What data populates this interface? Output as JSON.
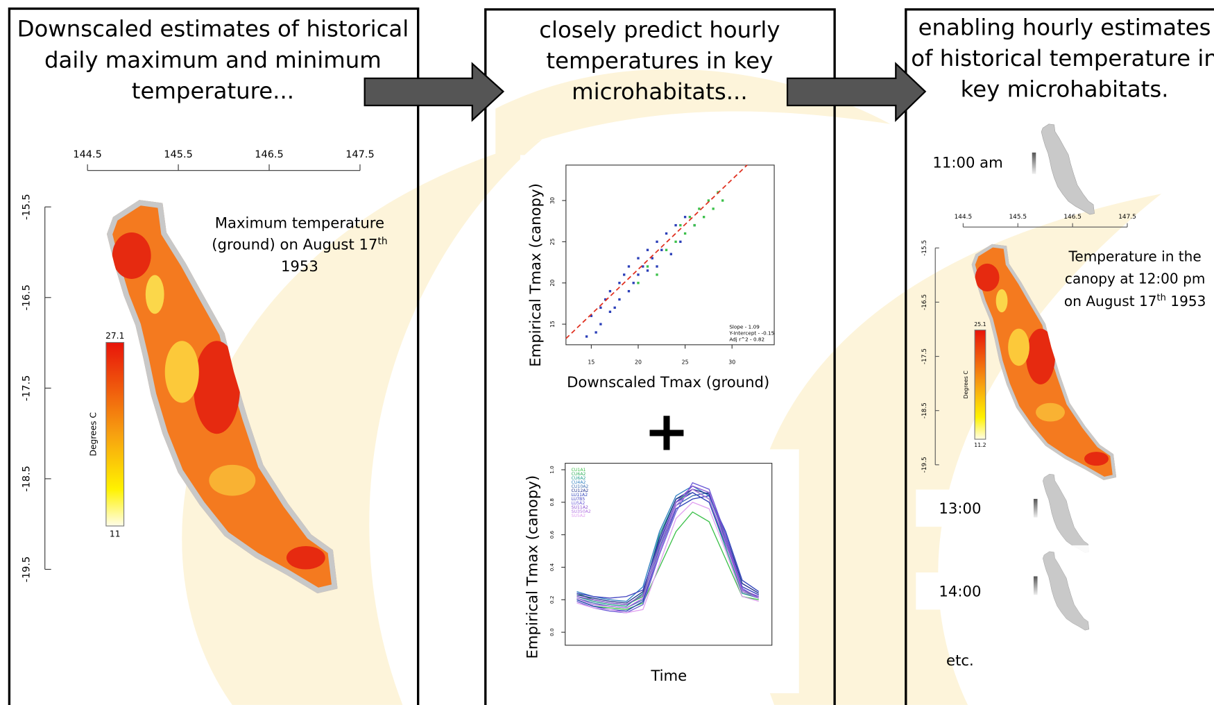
{
  "panels": [
    {
      "title_lines": [
        "Downscaled estimates of historical",
        "daily maximum and minimum",
        "temperature..."
      ],
      "xticks": [
        144.5,
        145.5,
        146.5,
        147.5
      ],
      "yticks": [
        -15.5,
        -16.5,
        -17.5,
        -18.5,
        -19.5
      ],
      "annotation": {
        "lines": [
          "Maximum temperature",
          "(ground) on August 17"
        ],
        "sup": "th",
        "last": "1953"
      },
      "colorbar": {
        "max": "27.1",
        "min": "11",
        "label": "Degrees C"
      }
    },
    {
      "title_lines": [
        "closely predict hourly",
        "temperatures in key",
        "microhabitats..."
      ],
      "plus": "+",
      "scatter": {
        "xlabel": "Downscaled Tmax (ground)",
        "ylabel": "Empirical Tmax (canopy)",
        "xlim": [
          12.3,
          34.5
        ],
        "ylim": [
          12.5,
          34.3
        ],
        "xticks": [
          15,
          20,
          25,
          30
        ],
        "yticks": [
          15,
          20,
          25,
          30
        ],
        "groups": [
          {
            "color": "#2b3fb8",
            "x": [
              14.5,
              15,
              15.5,
              16,
              16,
              16.5,
              17,
              17,
              17.5,
              18,
              18,
              18.5,
              19,
              19,
              19.5,
              20,
              20,
              20.5,
              21,
              21,
              21.5,
              22,
              22,
              22.5,
              23,
              23.5,
              24,
              24.5,
              25,
              26
            ],
            "y": [
              13.5,
              16,
              14,
              17,
              15,
              18,
              16.5,
              19,
              17,
              20,
              18,
              21,
              19,
              22,
              20,
              21,
              23,
              22,
              21.5,
              24,
              23,
              22,
              25,
              24,
              26,
              23.5,
              27,
              25,
              28,
              27
            ]
          },
          {
            "color": "#3cc04a",
            "x": [
              20,
              21,
              22,
              23,
              24,
              24.5,
              25,
              25.5,
              26,
              26.5,
              27,
              27.5,
              28,
              28.5,
              29
            ],
            "y": [
              20,
              22,
              21,
              24,
              25,
              27,
              26,
              28,
              27,
              29,
              28,
              30,
              29,
              31,
              30
            ]
          }
        ],
        "fit": {
          "slope": 1.09,
          "intercept": -0.15,
          "r2": 0.82,
          "labels": [
            "Slope - 1.09",
            "Y-Intercept - -0.15",
            "Adj r^2 - 0.82"
          ]
        }
      },
      "lines": {
        "xlabel": "Time",
        "ylabel": "Empirical Tmax (canopy)",
        "ylim": [
          -0.08,
          1.04
        ],
        "yticks": [
          {
            "value": 0,
            "label": "0.0"
          },
          {
            "value": 0.2,
            "label": "0.2"
          },
          {
            "value": 0.4,
            "label": "0.4"
          },
          {
            "value": 0.6,
            "label": "0.6"
          },
          {
            "value": 0.8,
            "label": "0.8"
          },
          {
            "value": 1,
            "label": "1.0"
          }
        ],
        "series": [
          {
            "name": "CU1A1",
            "color": "#3cc04a",
            "values": [
              0.2,
              0.16,
              0.15,
              0.14,
              0.18,
              0.4,
              0.62,
              0.74,
              0.68,
              0.45,
              0.22,
              0.2
            ]
          },
          {
            "name": "CU6A2",
            "color": "#2fae5a",
            "values": [
              0.24,
              0.2,
              0.18,
              0.17,
              0.22,
              0.55,
              0.8,
              0.88,
              0.82,
              0.55,
              0.25,
              0.22
            ]
          },
          {
            "name": "CU6A2",
            "color": "#1f9c8a",
            "values": [
              0.22,
              0.19,
              0.17,
              0.16,
              0.24,
              0.6,
              0.82,
              0.86,
              0.8,
              0.52,
              0.24,
              0.21
            ]
          },
          {
            "name": "CU4A2",
            "color": "#2f7fc0",
            "values": [
              0.25,
              0.22,
              0.2,
              0.19,
              0.28,
              0.62,
              0.84,
              0.9,
              0.84,
              0.58,
              0.28,
              0.23
            ]
          },
          {
            "name": "CU10A2",
            "color": "#3a6bb0",
            "values": [
              0.21,
              0.18,
              0.16,
              0.15,
              0.2,
              0.52,
              0.78,
              0.84,
              0.86,
              0.56,
              0.26,
              0.22
            ]
          },
          {
            "name": "CU12A2",
            "color": "#1e2f8c",
            "values": [
              0.23,
              0.21,
              0.19,
              0.18,
              0.25,
              0.58,
              0.82,
              0.88,
              0.85,
              0.6,
              0.3,
              0.24
            ]
          },
          {
            "name": "LU11A2",
            "color": "#2b3fb8",
            "values": [
              0.2,
              0.16,
              0.14,
              0.13,
              0.19,
              0.5,
              0.76,
              0.82,
              0.84,
              0.62,
              0.32,
              0.25
            ]
          },
          {
            "name": "LU7B5",
            "color": "#4040c0",
            "values": [
              0.24,
              0.22,
              0.21,
              0.22,
              0.26,
              0.56,
              0.8,
              0.86,
              0.8,
              0.54,
              0.28,
              0.23
            ]
          },
          {
            "name": "LU5A2",
            "color": "#6b5bd6",
            "values": [
              0.19,
              0.15,
              0.13,
              0.12,
              0.17,
              0.48,
              0.74,
              0.92,
              0.88,
              0.6,
              0.27,
              0.21
            ]
          },
          {
            "name": "SU11A2",
            "color": "#8a4fd0",
            "values": [
              0.22,
              0.2,
              0.18,
              0.17,
              0.23,
              0.54,
              0.8,
              0.9,
              0.86,
              0.58,
              0.26,
              0.22
            ]
          },
          {
            "name": "SU350A2",
            "color": "#b070e0",
            "values": [
              0.21,
              0.17,
              0.16,
              0.15,
              0.21,
              0.5,
              0.78,
              0.88,
              0.82,
              0.55,
              0.25,
              0.21
            ]
          },
          {
            "name": "SU5A2",
            "color": "#e0a0f0",
            "values": [
              0.18,
              0.15,
              0.14,
              0.12,
              0.14,
              0.42,
              0.7,
              0.8,
              0.76,
              0.5,
              0.22,
              0.19
            ]
          }
        ]
      }
    },
    {
      "title_lines": [
        "enabling hourly estimates",
        "of historical temperature in",
        "key microhabitats."
      ],
      "times": [
        "11:00 am",
        "13:00",
        "14:00",
        "etc."
      ],
      "xticks": [
        144.5,
        145.5,
        146.5,
        147.5
      ],
      "yticks": [
        -15.5,
        -16.5,
        -17.5,
        -18.5,
        -19.5
      ],
      "annotation": {
        "lines": [
          "Temperature  in the",
          "canopy at 12:00 pm",
          "on August 17"
        ],
        "sup": "th",
        "last": " 1953"
      },
      "colorbar": {
        "max": "25.1",
        "min": "11.2",
        "label": "Degrees C"
      }
    }
  ]
}
